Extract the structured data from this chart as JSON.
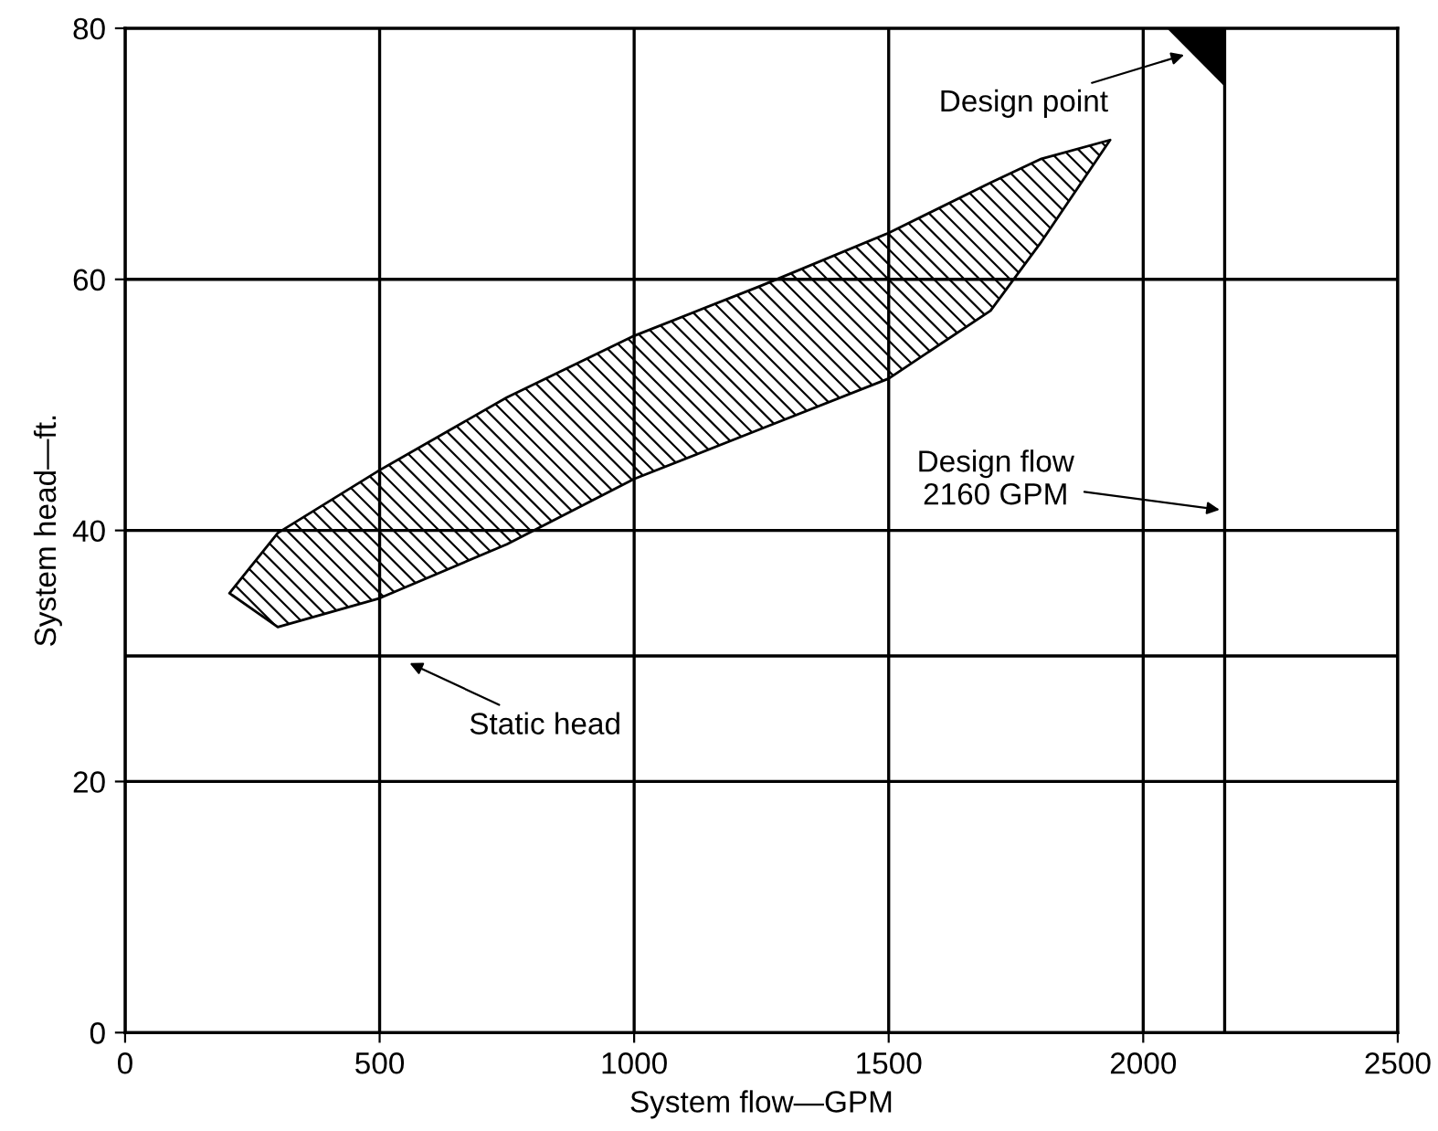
{
  "chart_data": {
    "type": "area",
    "xlabel": "System flow—GPM",
    "ylabel": "System head—ft.",
    "series": [
      {
        "type": "line",
        "color": "#000000",
        "x": [
          205,
          300,
          500,
          750,
          1000,
          1250,
          1500,
          1700,
          1800,
          1935
        ],
        "values": [
          null,
          null,
          null,
          null,
          null,
          null,
          null,
          null,
          null,
          null
        ],
        "upper": [
          35,
          39.8,
          44.8,
          50.6,
          55.5,
          59.5,
          63.7,
          67.7,
          69.6,
          71.1
        ],
        "lower": [
          35,
          32.3,
          34.6,
          38.9,
          44.1,
          48.1,
          52.1,
          57.5,
          63,
          71.1
        ]
      },
      {
        "color": "#000000",
        "x": [
          2050,
          2160
        ],
        "values": [
          80,
          75.5
        ]
      }
    ],
    "xlim": [
      0,
      2500
    ],
    "ylim": [
      0,
      80
    ],
    "xticks": [
      0,
      500,
      1000,
      1500,
      2000,
      2500
    ],
    "yticks": [
      0,
      20,
      40,
      60,
      80
    ],
    "grid": true,
    "ref_lines": [
      {
        "axis": "y",
        "value": 30,
        "label": "Static head",
        "color": "#000000"
      },
      {
        "axis": "x",
        "value": 2160,
        "label": "Design flow\n2160 GPM",
        "color": "#000000"
      }
    ],
    "annotations": [
      {
        "text": "Design point",
        "x": 2090,
        "y": 78
      }
    ]
  }
}
